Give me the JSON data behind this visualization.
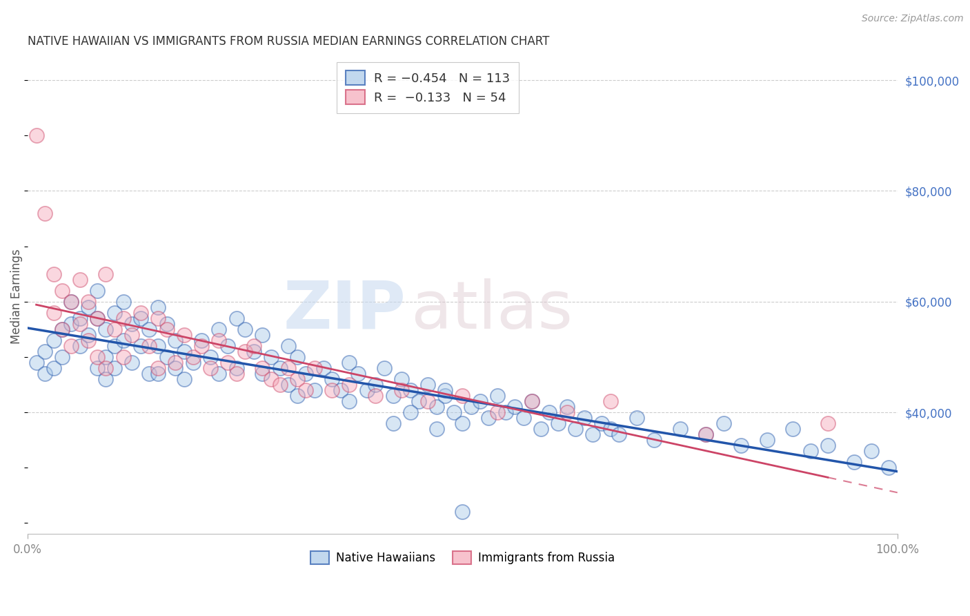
{
  "title": "NATIVE HAWAIIAN VS IMMIGRANTS FROM RUSSIA MEDIAN EARNINGS CORRELATION CHART",
  "source": "Source: ZipAtlas.com",
  "ylabel": "Median Earnings",
  "ylim": [
    18000,
    104000
  ],
  "xlim": [
    0,
    100
  ],
  "blue_color": "#a8c8e8",
  "pink_color": "#f4a8b8",
  "blue_line_color": "#2255aa",
  "pink_line_color": "#cc4466",
  "blue_r": "-0.454",
  "blue_n": "113",
  "pink_r": "-0.133",
  "pink_n": "54",
  "native_hawaiian_x": [
    1,
    2,
    2,
    3,
    3,
    4,
    4,
    5,
    5,
    6,
    6,
    7,
    7,
    8,
    8,
    8,
    9,
    9,
    9,
    10,
    10,
    10,
    11,
    11,
    12,
    12,
    13,
    13,
    14,
    14,
    15,
    15,
    15,
    16,
    16,
    17,
    17,
    18,
    18,
    19,
    20,
    21,
    22,
    22,
    23,
    24,
    24,
    25,
    26,
    27,
    27,
    28,
    29,
    30,
    30,
    31,
    31,
    32,
    33,
    34,
    35,
    36,
    37,
    37,
    38,
    39,
    40,
    41,
    42,
    43,
    44,
    45,
    46,
    47,
    48,
    49,
    50,
    51,
    52,
    53,
    54,
    55,
    56,
    57,
    58,
    59,
    60,
    61,
    62,
    63,
    64,
    65,
    66,
    67,
    68,
    70,
    72,
    75,
    78,
    80,
    82,
    85,
    88,
    90,
    92,
    95,
    97,
    99,
    50,
    47,
    44,
    42,
    48
  ],
  "native_hawaiian_y": [
    49000,
    51000,
    47000,
    53000,
    48000,
    55000,
    50000,
    60000,
    56000,
    57000,
    52000,
    59000,
    54000,
    62000,
    57000,
    48000,
    55000,
    50000,
    46000,
    58000,
    52000,
    48000,
    60000,
    53000,
    56000,
    49000,
    57000,
    52000,
    55000,
    47000,
    59000,
    52000,
    47000,
    56000,
    50000,
    53000,
    48000,
    51000,
    46000,
    49000,
    53000,
    50000,
    55000,
    47000,
    52000,
    57000,
    48000,
    55000,
    51000,
    54000,
    47000,
    50000,
    48000,
    52000,
    45000,
    50000,
    43000,
    47000,
    44000,
    48000,
    46000,
    44000,
    49000,
    42000,
    47000,
    44000,
    45000,
    48000,
    43000,
    46000,
    44000,
    42000,
    45000,
    41000,
    43000,
    40000,
    38000,
    41000,
    42000,
    39000,
    43000,
    40000,
    41000,
    39000,
    42000,
    37000,
    40000,
    38000,
    41000,
    37000,
    39000,
    36000,
    38000,
    37000,
    36000,
    39000,
    35000,
    37000,
    36000,
    38000,
    34000,
    35000,
    37000,
    33000,
    34000,
    31000,
    33000,
    30000,
    22000,
    37000,
    40000,
    38000,
    44000
  ],
  "russia_x": [
    1,
    2,
    3,
    3,
    4,
    4,
    5,
    5,
    6,
    6,
    7,
    7,
    8,
    8,
    9,
    9,
    10,
    11,
    11,
    12,
    13,
    14,
    15,
    15,
    16,
    17,
    18,
    19,
    20,
    21,
    22,
    23,
    24,
    25,
    26,
    27,
    28,
    29,
    30,
    31,
    32,
    33,
    35,
    37,
    40,
    43,
    46,
    50,
    54,
    58,
    62,
    67,
    78,
    92
  ],
  "russia_y": [
    90000,
    76000,
    65000,
    58000,
    62000,
    55000,
    60000,
    52000,
    64000,
    56000,
    60000,
    53000,
    57000,
    50000,
    65000,
    48000,
    55000,
    57000,
    50000,
    54000,
    58000,
    52000,
    57000,
    48000,
    55000,
    49000,
    54000,
    50000,
    52000,
    48000,
    53000,
    49000,
    47000,
    51000,
    52000,
    48000,
    46000,
    45000,
    48000,
    46000,
    44000,
    48000,
    44000,
    45000,
    43000,
    44000,
    42000,
    43000,
    40000,
    42000,
    40000,
    42000,
    36000,
    38000
  ]
}
